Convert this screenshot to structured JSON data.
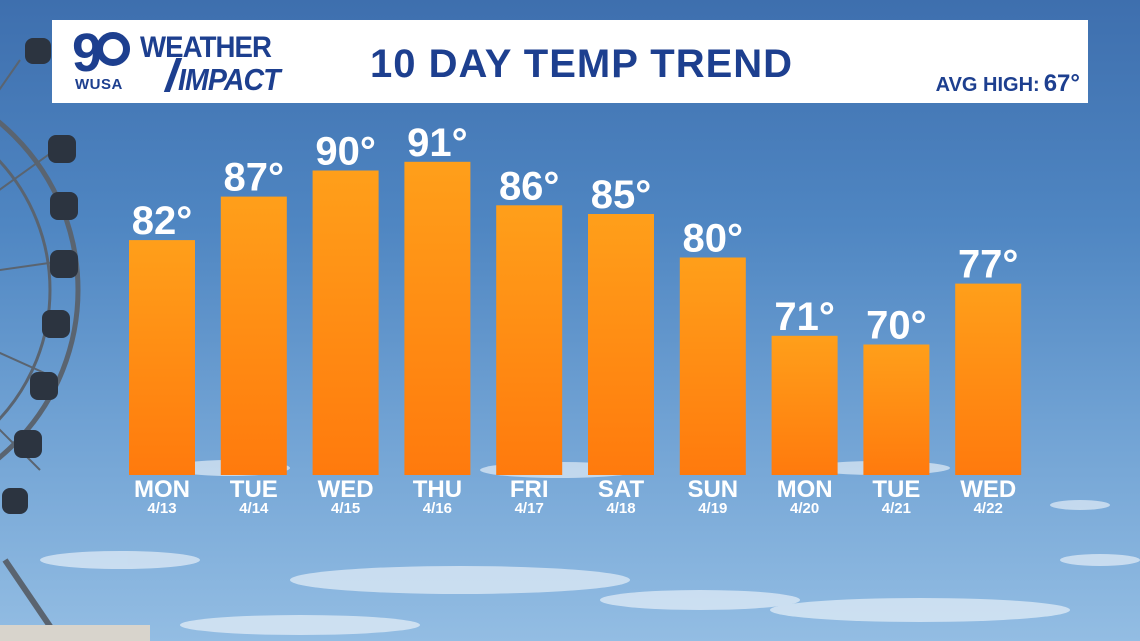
{
  "header": {
    "logo_number": "9",
    "logo_station": "WUSA",
    "logo_line1": "WEATHER",
    "logo_line2": "IMPACT",
    "title": "10 DAY TEMP TREND",
    "avg_label": "AVG HIGH:",
    "avg_value": "67°"
  },
  "colors": {
    "bar_top": "#ff9f1a",
    "bar_bottom": "#ff7a0d",
    "header_text": "#1d3f8f",
    "sky": "#4f86c2"
  },
  "chart_data": {
    "type": "bar",
    "title": "10 DAY TEMP TREND",
    "categories": [
      "MON",
      "TUE",
      "WED",
      "THU",
      "FRI",
      "SAT",
      "SUN",
      "MON",
      "TUE",
      "WED"
    ],
    "dates": [
      "4/13",
      "4/14",
      "4/15",
      "4/16",
      "4/17",
      "4/18",
      "4/19",
      "4/20",
      "4/21",
      "4/22"
    ],
    "values": [
      82,
      87,
      90,
      91,
      86,
      85,
      80,
      71,
      70,
      77
    ],
    "value_labels": [
      "82°",
      "87°",
      "90°",
      "91°",
      "86°",
      "85°",
      "80°",
      "71°",
      "70°",
      "77°"
    ],
    "unit": "°",
    "ylim": [
      55,
      92
    ],
    "grid": false,
    "legend": "none"
  }
}
